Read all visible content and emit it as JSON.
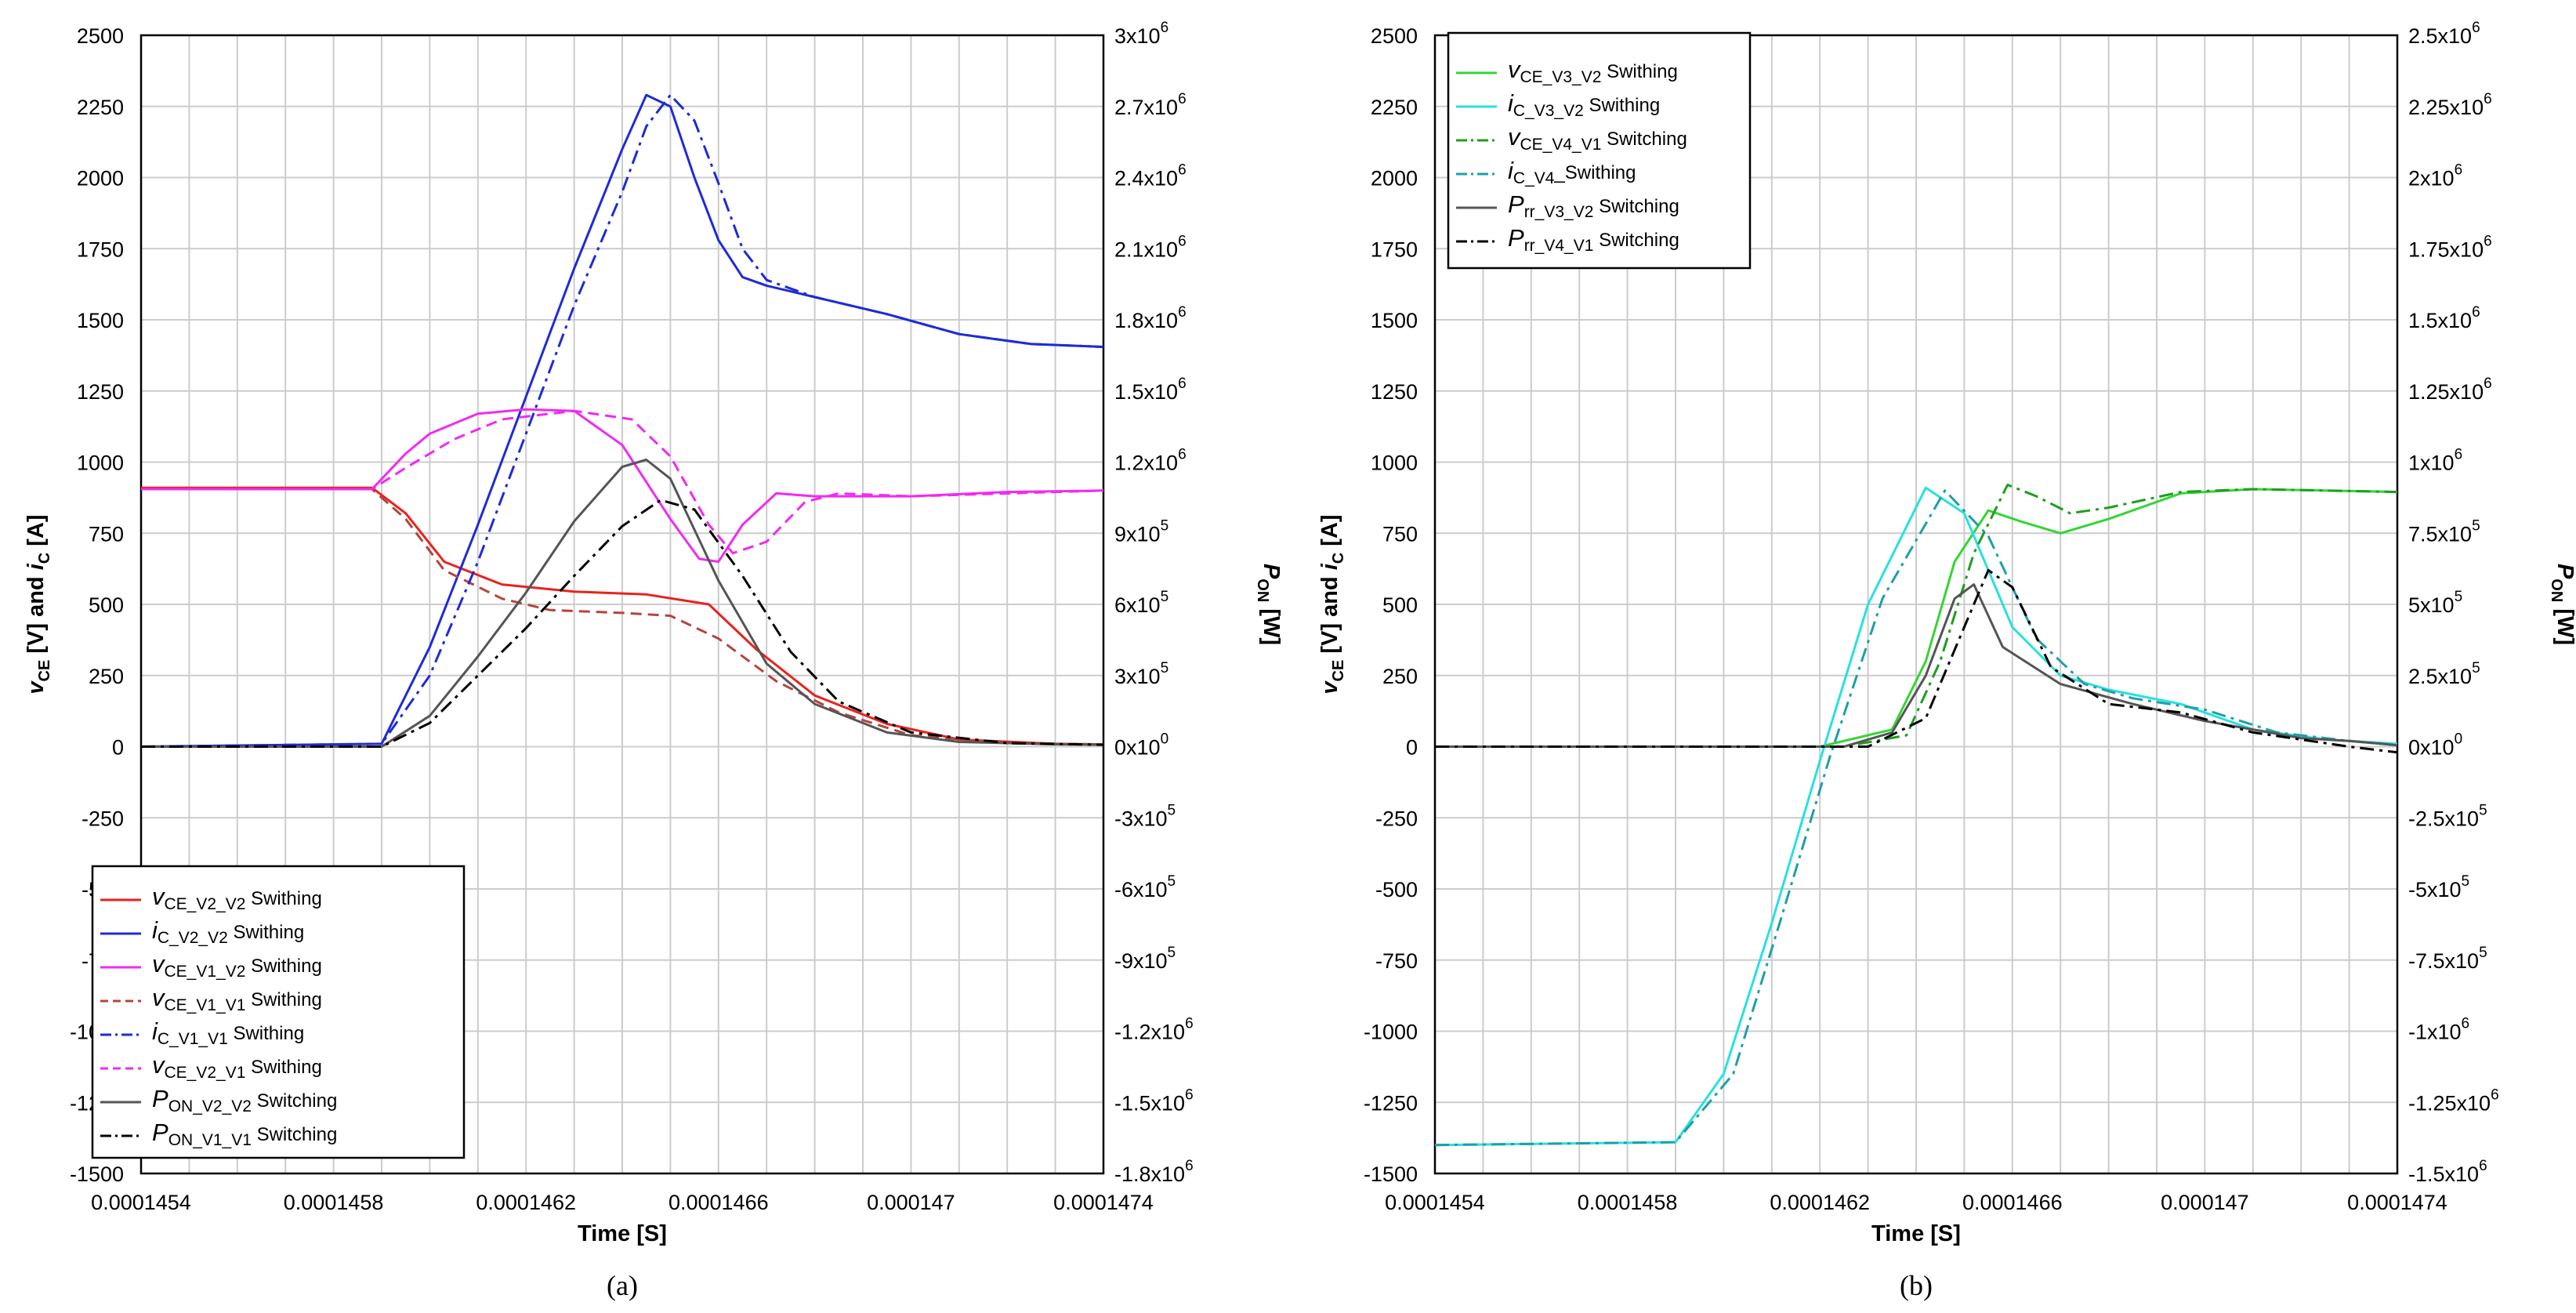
{
  "colors": {
    "red": "#e8231e",
    "blue": "#1f2bd6",
    "magenta": "#f02bf0",
    "brown": "#b5443c",
    "gray": "#555555",
    "black": "#000000",
    "green": "#33d633",
    "darkgreen": "#1e9e1e",
    "cyan": "#29e0e0",
    "teal": "#1e9fa8",
    "grid": "#cccccc"
  },
  "shared": {
    "x_ticks": [
      "0.0001454",
      "0.0001458",
      "0.0001462",
      "0.0001466",
      "0.000147",
      "0.0001474"
    ],
    "x_label": "Time [S]",
    "y_left_ticks": [
      "2500",
      "2250",
      "2000",
      "1750",
      "1500",
      "1250",
      "1000",
      "750",
      "500",
      "250",
      "0",
      "-250",
      "-500",
      "-750",
      "-1000",
      "-1250",
      "-1500"
    ],
    "y_left_label": {
      "v": "v",
      "vsub": "CE",
      "mid": " [V] and ",
      "i": "i",
      "isub": "C",
      "end": " [A]"
    },
    "y_right_label": {
      "main": "P",
      "sub": "ON",
      "end": " [W]"
    }
  },
  "chart_data": [
    {
      "type": "line",
      "caption": "(a)",
      "xlabel": "Time [S]",
      "xlim": [
        0.0001454,
        0.0001474
      ],
      "ylim_left": [
        -1500,
        2500
      ],
      "ylim_right": [
        -1800000,
        3000000
      ],
      "right_ticks": [
        {
          "m": "3",
          "e": "6"
        },
        {
          "m": "2.7",
          "e": "6"
        },
        {
          "m": "2.4",
          "e": "6"
        },
        {
          "m": "2.1",
          "e": "6"
        },
        {
          "m": "1.8",
          "e": "6"
        },
        {
          "m": "1.5",
          "e": "6"
        },
        {
          "m": "1.2",
          "e": "6"
        },
        {
          "m": "9",
          "e": "5"
        },
        {
          "m": "6",
          "e": "5"
        },
        {
          "m": "3",
          "e": "5"
        },
        {
          "m": "0",
          "e": "0"
        },
        {
          "m": "-3",
          "e": "5"
        },
        {
          "m": "-6",
          "e": "5"
        },
        {
          "m": "-9",
          "e": "5"
        },
        {
          "m": "-1.2",
          "e": "6"
        },
        {
          "m": "-1.5",
          "e": "6"
        },
        {
          "m": "-1.8",
          "e": "6"
        }
      ],
      "legend_position": "bottom-left",
      "series": [
        {
          "name": "vCE_V2_V2 Swithing",
          "label": {
            "v": "v",
            "sub": "CE_V2_V2",
            "rest": " Swithing"
          },
          "color": "red",
          "dash": "solid",
          "axis": "left",
          "x": [
            145.4,
            145.88,
            145.95,
            146.03,
            146.15,
            146.3,
            146.45,
            146.58,
            146.68,
            146.8,
            146.95,
            147.1,
            147.3,
            147.4
          ],
          "y": [
            910,
            910,
            820,
            650,
            570,
            545,
            535,
            500,
            340,
            180,
            80,
            25,
            10,
            8
          ]
        },
        {
          "name": "iC_V2_V2 Swithing",
          "label": {
            "v": "i",
            "sub": "C_V2_V2",
            "rest": " Swithing"
          },
          "color": "blue",
          "dash": "solid",
          "axis": "left",
          "x": [
            145.4,
            145.9,
            146.0,
            146.1,
            146.2,
            146.3,
            146.4,
            146.45,
            146.5,
            146.55,
            146.6,
            146.65,
            146.7,
            146.8,
            146.95,
            147.1,
            147.25,
            147.4
          ],
          "y": [
            0,
            10,
            350,
            780,
            1230,
            1680,
            2100,
            2290,
            2250,
            2000,
            1780,
            1650,
            1620,
            1580,
            1520,
            1450,
            1415,
            1405
          ]
        },
        {
          "name": "vCE_V1_V2 Swithing",
          "label": {
            "v": "v",
            "sub": "CE_V1_V2",
            "rest": " Swithing"
          },
          "color": "magenta",
          "dash": "solid",
          "axis": "left",
          "x": [
            145.4,
            145.88,
            145.95,
            146.0,
            146.1,
            146.2,
            146.3,
            146.4,
            146.5,
            146.56,
            146.6,
            146.65,
            146.72,
            146.8,
            147.0,
            147.2,
            147.4
          ],
          "y": [
            905,
            905,
            1030,
            1100,
            1170,
            1185,
            1180,
            1060,
            800,
            660,
            650,
            780,
            890,
            880,
            880,
            895,
            900
          ]
        },
        {
          "name": "vCE_V1_V1 Swithing",
          "label": {
            "v": "v",
            "sub": "CE_V1_V1",
            "rest": " Swithing"
          },
          "color": "brown",
          "dash": "dash",
          "axis": "left",
          "x": [
            145.4,
            145.88,
            145.95,
            146.03,
            146.15,
            146.25,
            146.4,
            146.5,
            146.6,
            146.72,
            146.85,
            147.0,
            147.2,
            147.4
          ],
          "y": [
            905,
            905,
            800,
            620,
            520,
            480,
            470,
            460,
            380,
            230,
            120,
            40,
            12,
            8
          ]
        },
        {
          "name": "iC_V1_V1 Swithing",
          "label": {
            "v": "i",
            "sub": "C_V1_V1",
            "rest": " Swithing"
          },
          "color": "blue",
          "dash": "dashdot",
          "axis": "left",
          "x": [
            145.4,
            145.9,
            146.0,
            146.1,
            146.2,
            146.3,
            146.4,
            146.45,
            146.5,
            146.55,
            146.6,
            146.65,
            146.7,
            146.8,
            146.95,
            147.1,
            147.25,
            147.4
          ],
          "y": [
            0,
            10,
            250,
            650,
            1100,
            1550,
            1950,
            2180,
            2290,
            2200,
            1980,
            1750,
            1640,
            1580,
            1520,
            1450,
            1415,
            1405
          ]
        },
        {
          "name": "vCE_V2_V1 Swithing",
          "label": {
            "v": "v",
            "sub": "CE_V2_V1",
            "rest": " Swithing"
          },
          "color": "magenta",
          "dash": "dash",
          "axis": "left",
          "x": [
            145.4,
            145.88,
            145.95,
            146.05,
            146.15,
            146.3,
            146.42,
            146.5,
            146.58,
            146.63,
            146.7,
            146.78,
            146.85,
            147.0,
            147.4
          ],
          "y": [
            905,
            905,
            980,
            1080,
            1150,
            1180,
            1150,
            1020,
            780,
            680,
            720,
            860,
            890,
            880,
            900
          ]
        },
        {
          "name": "PON_V2_V2 Switching",
          "label": {
            "v": "P",
            "sub": "ON_V2_V2",
            "rest": " Switching"
          },
          "color": "gray",
          "dash": "solid",
          "axis": "right",
          "x": [
            145.4,
            145.9,
            146.0,
            146.1,
            146.2,
            146.3,
            146.4,
            146.45,
            146.5,
            146.6,
            146.7,
            146.8,
            146.95,
            147.1,
            147.3,
            147.4
          ],
          "y": [
            0,
            0,
            130000,
            380000,
            650000,
            950000,
            1180000,
            1210000,
            1130000,
            700000,
            350000,
            180000,
            60000,
            20000,
            10000,
            8000
          ]
        },
        {
          "name": "PON_V1_V1 Switching",
          "label": {
            "v": "P",
            "sub": "ON_V1_V1",
            "rest": " Switching"
          },
          "color": "black",
          "dash": "dashdot",
          "axis": "right",
          "x": [
            145.4,
            145.9,
            146.0,
            146.1,
            146.2,
            146.3,
            146.4,
            146.48,
            146.55,
            146.65,
            146.75,
            146.85,
            147.0,
            147.2,
            147.4
          ],
          "y": [
            0,
            0,
            100000,
            300000,
            500000,
            720000,
            930000,
            1040000,
            1000000,
            720000,
            400000,
            190000,
            60000,
            15000,
            8000
          ]
        }
      ]
    },
    {
      "type": "line",
      "caption": "(b)",
      "xlabel": "Time [S]",
      "xlim": [
        0.0001454,
        0.0001474
      ],
      "ylim_left": [
        -1500,
        2500
      ],
      "ylim_right": [
        -1500000,
        2500000
      ],
      "right_ticks": [
        {
          "m": "2.5",
          "e": "6"
        },
        {
          "m": "2.25",
          "e": "6"
        },
        {
          "m": "2",
          "e": "6"
        },
        {
          "m": "1.75",
          "e": "6"
        },
        {
          "m": "1.5",
          "e": "6"
        },
        {
          "m": "1.25",
          "e": "6"
        },
        {
          "m": "1",
          "e": "6"
        },
        {
          "m": "7.5",
          "e": "5"
        },
        {
          "m": "5",
          "e": "5"
        },
        {
          "m": "2.5",
          "e": "5"
        },
        {
          "m": "0",
          "e": "0"
        },
        {
          "m": "-2.5",
          "e": "5"
        },
        {
          "m": "-5",
          "e": "5"
        },
        {
          "m": "-7.5",
          "e": "5"
        },
        {
          "m": "-1",
          "e": "6"
        },
        {
          "m": "-1.25",
          "e": "6"
        },
        {
          "m": "-1.5",
          "e": "6"
        }
      ],
      "legend_position": "top-left",
      "series": [
        {
          "name": "vCE_V3_V2 Swithing",
          "label": {
            "v": "v",
            "sub": "CE_V3_V2",
            "rest": " Swithing"
          },
          "color": "green",
          "dash": "solid",
          "axis": "left",
          "x": [
            145.4,
            146.2,
            146.35,
            146.42,
            146.48,
            146.55,
            146.62,
            146.7,
            146.8,
            146.95,
            147.1,
            147.4
          ],
          "y": [
            0,
            0,
            60,
            300,
            650,
            830,
            790,
            750,
            800,
            890,
            905,
            895
          ]
        },
        {
          "name": "iC_V3_V2 Swithing",
          "label": {
            "v": "i",
            "sub": "C_V3_V2",
            "rest": " Swithing"
          },
          "color": "cyan",
          "dash": "solid",
          "axis": "left",
          "x": [
            145.4,
            145.9,
            146.0,
            146.1,
            146.2,
            146.3,
            146.42,
            146.5,
            146.6,
            146.7,
            146.8,
            146.95,
            147.1,
            147.25,
            147.4
          ],
          "y": [
            -1400,
            -1390,
            -1150,
            -620,
            -50,
            500,
            910,
            820,
            420,
            250,
            200,
            150,
            60,
            25,
            10
          ]
        },
        {
          "name": "vCE_V4_V1 Switching",
          "label": {
            "v": "v",
            "sub": "CE_V4_V1",
            "rest": " Switching"
          },
          "color": "darkgreen",
          "dash": "dashdot",
          "axis": "left",
          "x": [
            145.4,
            146.25,
            146.38,
            146.45,
            146.52,
            146.59,
            146.65,
            146.72,
            146.8,
            146.95,
            147.1,
            147.4
          ],
          "y": [
            0,
            0,
            40,
            300,
            680,
            920,
            880,
            820,
            840,
            895,
            905,
            895
          ]
        },
        {
          "name": "iC_V4_Swithing",
          "label": {
            "v": "i",
            "sub": "C_V4",
            "rest": "_Swithing"
          },
          "color": "teal",
          "dash": "dashdot",
          "axis": "left",
          "x": [
            145.4,
            145.9,
            146.02,
            146.12,
            146.22,
            146.33,
            146.46,
            146.55,
            146.65,
            146.75,
            146.85,
            147.0,
            147.15,
            147.3,
            147.4
          ],
          "y": [
            -1400,
            -1390,
            -1150,
            -600,
            -40,
            520,
            900,
            740,
            380,
            220,
            170,
            130,
            50,
            20,
            5
          ]
        },
        {
          "name": "Prr_V3_V2 Switching",
          "label": {
            "v": "P",
            "sub": "rr_V3_V2",
            "rest": " Switching"
          },
          "color": "gray",
          "dash": "solid",
          "axis": "right",
          "x": [
            145.4,
            146.25,
            146.35,
            146.42,
            146.48,
            146.52,
            146.58,
            146.7,
            146.85,
            147.0,
            147.2,
            147.3,
            147.4
          ],
          "y": [
            0,
            0,
            50000,
            250000,
            520000,
            570000,
            350000,
            220000,
            150000,
            90000,
            30000,
            20000,
            5000
          ]
        },
        {
          "name": "Prr_V4_V1 Switching",
          "label": {
            "v": "P",
            "sub": "rr_V4_V1",
            "rest": " Switching"
          },
          "color": "black",
          "dash": "dashdot",
          "axis": "right",
          "x": [
            145.4,
            146.3,
            146.42,
            146.5,
            146.55,
            146.6,
            146.68,
            146.8,
            146.95,
            147.1,
            147.3,
            147.4
          ],
          "y": [
            0,
            0,
            100000,
            420000,
            620000,
            560000,
            280000,
            150000,
            120000,
            50000,
            0,
            -20000
          ]
        }
      ]
    }
  ]
}
